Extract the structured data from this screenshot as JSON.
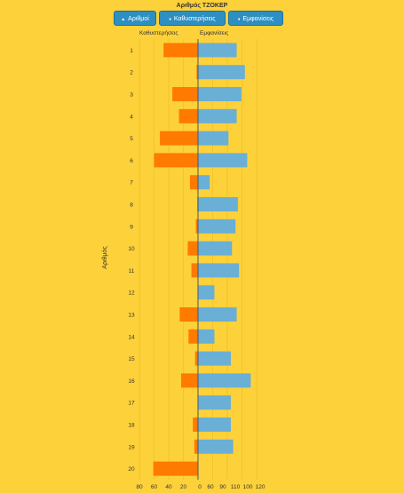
{
  "chart_title": "Αριθμός ΤΖΟΚΕΡ",
  "buttons": [
    {
      "label": "Αριθμοί",
      "arrow": "▲"
    },
    {
      "label": "Καθυστερήσεις",
      "arrow": "♦"
    },
    {
      "label": "Εμφανίσεις",
      "arrow": "♦"
    }
  ],
  "colors": {
    "delays": "#ff7a00",
    "appearances": "#6aafd6",
    "grid": "#f4c42a",
    "axis": "#555555"
  },
  "chart_data": {
    "type": "bar",
    "orientation": "horizontal-diverging",
    "header_left": "Καθυστερήσεις",
    "header_right": "Εμφανίσεις",
    "ylabel": "Αριθμός",
    "categories": [
      "1",
      "2",
      "3",
      "4",
      "5",
      "6",
      "7",
      "8",
      "9",
      "10",
      "11",
      "12",
      "13",
      "14",
      "15",
      "16",
      "17",
      "18",
      "19",
      "20"
    ],
    "series": [
      {
        "name": "Καθυστερήσεις",
        "values": [
          47,
          2,
          35,
          26,
          52,
          60,
          11,
          1,
          3,
          14,
          9,
          0,
          25,
          13,
          4,
          23,
          0,
          7,
          5,
          61
        ]
      },
      {
        "name": "Εμφανίσεις",
        "values": [
          108,
          115,
          112,
          108,
          101,
          117,
          85,
          109,
          107,
          104,
          110,
          89,
          108,
          89,
          103,
          120,
          103,
          103,
          105,
          75
        ]
      }
    ],
    "x_left_ticks": [
      80,
      60,
      40,
      20
    ],
    "x_right_ticks": [
      0,
      60,
      90,
      110,
      100,
      120
    ],
    "x_left_range": [
      0,
      80
    ],
    "x_right_range": [
      75,
      125
    ],
    "grid": true
  }
}
